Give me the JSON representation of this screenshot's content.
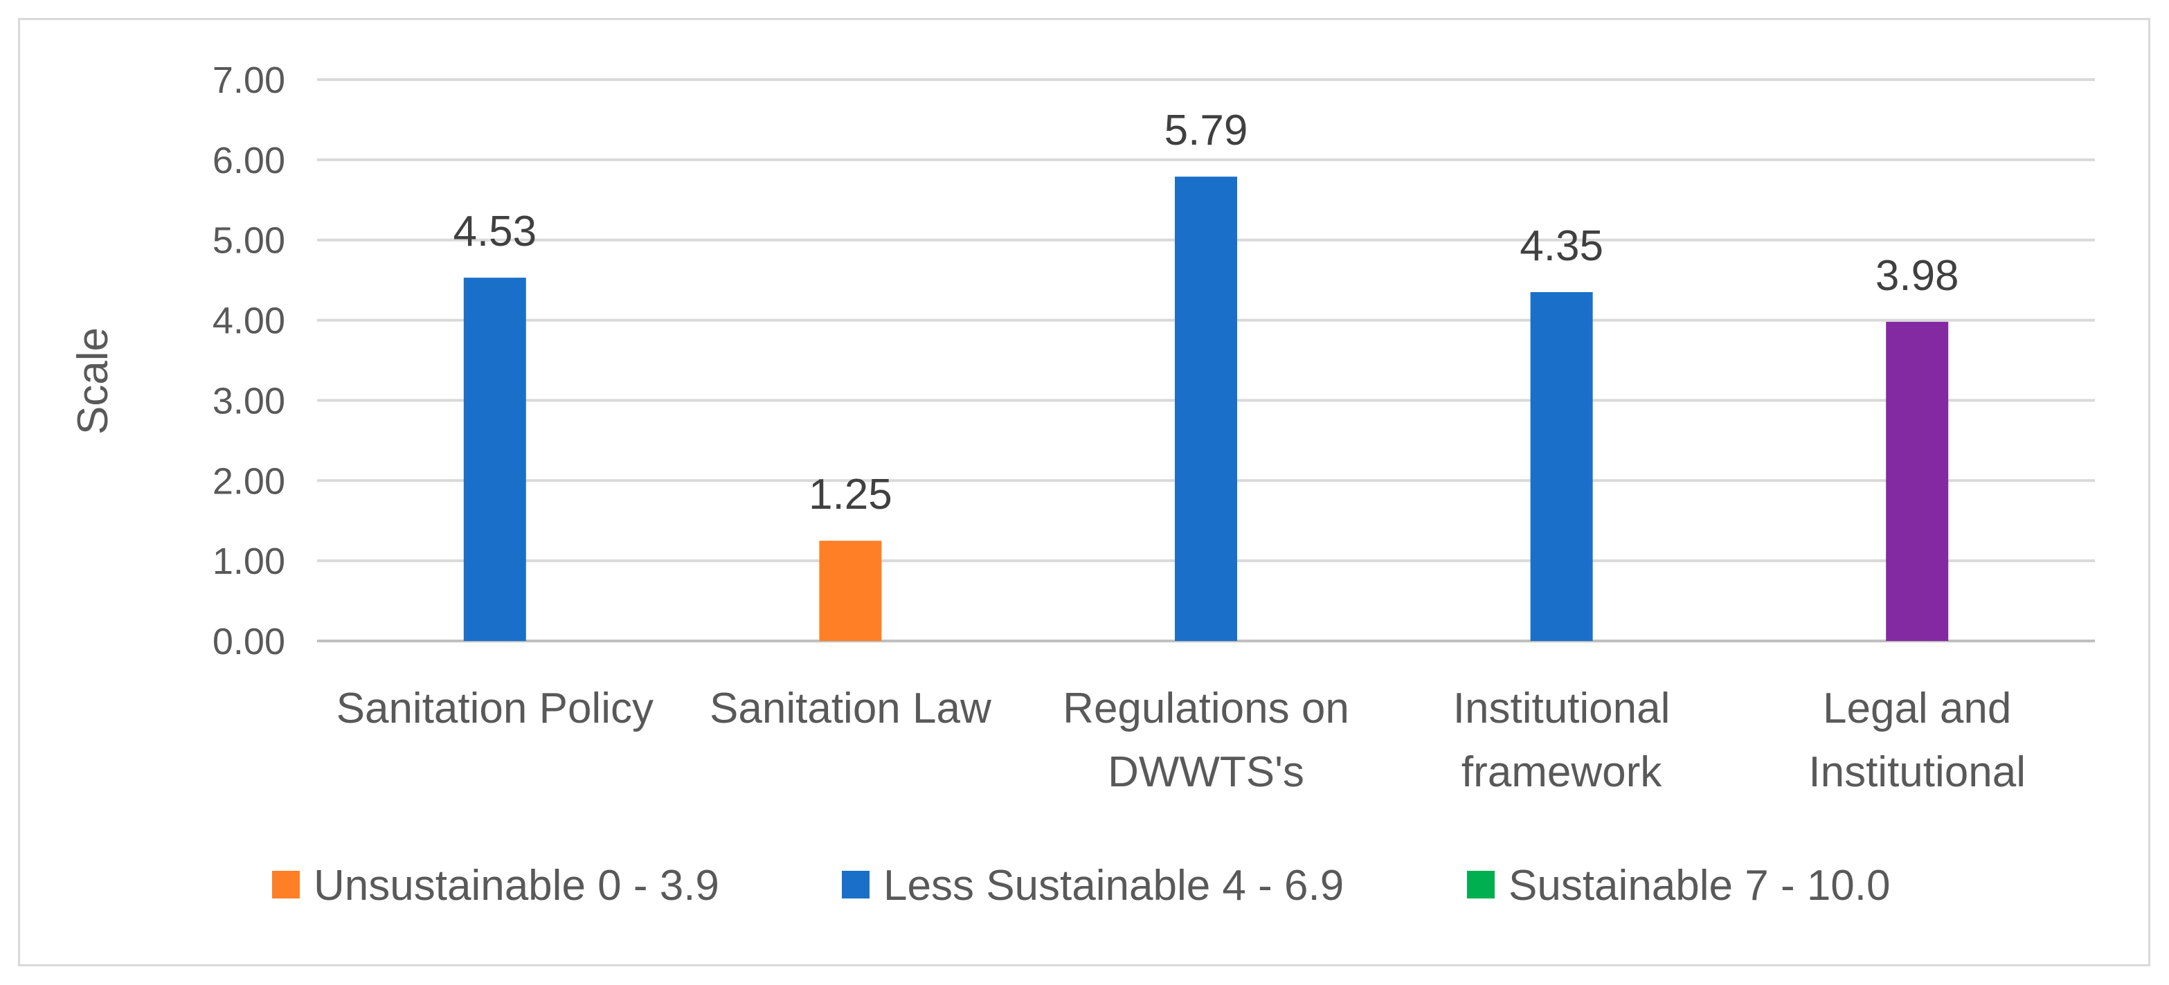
{
  "chart_data": {
    "type": "bar",
    "title": "",
    "xlabel": "",
    "ylabel": "Scale",
    "ylim": [
      0,
      7
    ],
    "yticks": [
      "0.00",
      "1.00",
      "2.00",
      "3.00",
      "4.00",
      "5.00",
      "6.00",
      "7.00"
    ],
    "grid": true,
    "categories": [
      [
        "Sanitation Policy"
      ],
      [
        "Sanitation Law"
      ],
      [
        "Regulations on",
        "DWWTS's"
      ],
      [
        "Institutional",
        "framework"
      ],
      [
        "Legal and",
        "Institutional"
      ]
    ],
    "values": [
      4.53,
      1.25,
      5.79,
      4.35,
      3.98
    ],
    "data_labels": [
      "4.53",
      "1.25",
      "5.79",
      "4.35",
      "3.98"
    ],
    "bar_colors": [
      "#1a70c8",
      "#ff7f26",
      "#1a70c8",
      "#1a70c8",
      "#8329a1"
    ],
    "legend_position": "bottom",
    "legend": [
      {
        "label": "Unsustainable 0 - 3.9",
        "color": "#ff7f26"
      },
      {
        "label": "Less Sustainable 4 - 6.9",
        "color": "#1a70c8"
      },
      {
        "label": "Sustainable 7 - 10.0",
        "color": "#00b050"
      }
    ]
  }
}
